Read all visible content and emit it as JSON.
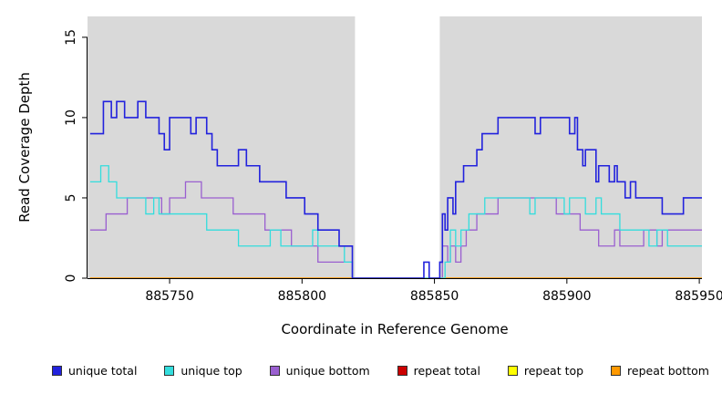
{
  "chart_data": {
    "type": "line",
    "subtype": "step",
    "title": "",
    "xlabel": "Coordinate in Reference Genome",
    "ylabel": "Read Coverage Depth",
    "xlim": [
      885719,
      885951
    ],
    "ylim": [
      0,
      16.3
    ],
    "xticks": [
      885750,
      885800,
      885850,
      885900,
      885950
    ],
    "yticks": [
      0,
      5,
      10,
      15
    ],
    "plot_bg": "#d9d9d9",
    "gap_region": [
      885820,
      885852
    ],
    "grid": false,
    "legend_position": "bottom",
    "draw_order": [
      "repeat total",
      "repeat top",
      "repeat bottom",
      "unique bottom",
      "unique top",
      "unique total"
    ],
    "series": [
      {
        "name": "unique total",
        "color": "#2222dd",
        "points": [
          [
            885720,
            9
          ],
          [
            885725,
            11
          ],
          [
            885728,
            10
          ],
          [
            885730,
            11
          ],
          [
            885733,
            10
          ],
          [
            885738,
            11
          ],
          [
            885741,
            10
          ],
          [
            885746,
            9
          ],
          [
            885748,
            8
          ],
          [
            885750,
            10
          ],
          [
            885758,
            9
          ],
          [
            885760,
            10
          ],
          [
            885764,
            9
          ],
          [
            885766,
            8
          ],
          [
            885768,
            7
          ],
          [
            885776,
            8
          ],
          [
            885779,
            7
          ],
          [
            885784,
            6
          ],
          [
            885790,
            6
          ],
          [
            885794,
            5
          ],
          [
            885801,
            4
          ],
          [
            885806,
            3
          ],
          [
            885812,
            3
          ],
          [
            885814,
            2
          ],
          [
            885819,
            0
          ],
          [
            885846,
            1
          ],
          [
            885848,
            0
          ],
          [
            885852,
            1
          ],
          [
            885853,
            4
          ],
          [
            885854,
            3
          ],
          [
            885855,
            5
          ],
          [
            885857,
            4
          ],
          [
            885858,
            6
          ],
          [
            885861,
            7
          ],
          [
            885864,
            7
          ],
          [
            885866,
            8
          ],
          [
            885868,
            9
          ],
          [
            885874,
            10
          ],
          [
            885886,
            10
          ],
          [
            885888,
            9
          ],
          [
            885890,
            10
          ],
          [
            885899,
            10
          ],
          [
            885901,
            9
          ],
          [
            885903,
            10
          ],
          [
            885904,
            8
          ],
          [
            885906,
            7
          ],
          [
            885907,
            8
          ],
          [
            885911,
            6
          ],
          [
            885912,
            7
          ],
          [
            885916,
            6
          ],
          [
            885918,
            7
          ],
          [
            885919,
            6
          ],
          [
            885922,
            5
          ],
          [
            885924,
            6
          ],
          [
            885926,
            5
          ],
          [
            885936,
            4
          ],
          [
            885942,
            4
          ],
          [
            885944,
            5
          ],
          [
            885950,
            5
          ]
        ]
      },
      {
        "name": "unique top",
        "color": "#33dddd",
        "points": [
          [
            885720,
            6
          ],
          [
            885724,
            7
          ],
          [
            885727,
            6
          ],
          [
            885730,
            5
          ],
          [
            885741,
            4
          ],
          [
            885744,
            5
          ],
          [
            885746,
            4
          ],
          [
            885753,
            4
          ],
          [
            885760,
            4
          ],
          [
            885764,
            3
          ],
          [
            885772,
            3
          ],
          [
            885776,
            2
          ],
          [
            885784,
            2
          ],
          [
            885788,
            3
          ],
          [
            885792,
            2
          ],
          [
            885804,
            3
          ],
          [
            885806,
            2
          ],
          [
            885816,
            1
          ],
          [
            885819,
            0
          ],
          [
            885852,
            0
          ],
          [
            885854,
            1
          ],
          [
            885856,
            3
          ],
          [
            885858,
            2
          ],
          [
            885860,
            3
          ],
          [
            885863,
            4
          ],
          [
            885869,
            5
          ],
          [
            885884,
            5
          ],
          [
            885886,
            4
          ],
          [
            885888,
            5
          ],
          [
            885897,
            5
          ],
          [
            885899,
            4
          ],
          [
            885901,
            5
          ],
          [
            885907,
            4
          ],
          [
            885911,
            5
          ],
          [
            885913,
            4
          ],
          [
            885920,
            3
          ],
          [
            885928,
            3
          ],
          [
            885931,
            2
          ],
          [
            885934,
            3
          ],
          [
            885938,
            2
          ],
          [
            885950,
            2
          ]
        ]
      },
      {
        "name": "unique bottom",
        "color": "#9a5fd0",
        "points": [
          [
            885720,
            3
          ],
          [
            885726,
            4
          ],
          [
            885734,
            5
          ],
          [
            885747,
            4
          ],
          [
            885750,
            5
          ],
          [
            885756,
            6
          ],
          [
            885762,
            5
          ],
          [
            885774,
            4
          ],
          [
            885786,
            3
          ],
          [
            885796,
            2
          ],
          [
            885806,
            1
          ],
          [
            885816,
            1
          ],
          [
            885819,
            0
          ],
          [
            885852,
            0
          ],
          [
            885853,
            2
          ],
          [
            885855,
            1
          ],
          [
            885856,
            2
          ],
          [
            885858,
            1
          ],
          [
            885860,
            2
          ],
          [
            885862,
            3
          ],
          [
            885866,
            4
          ],
          [
            885874,
            5
          ],
          [
            885893,
            5
          ],
          [
            885896,
            4
          ],
          [
            885905,
            3
          ],
          [
            885912,
            2
          ],
          [
            885918,
            3
          ],
          [
            885920,
            2
          ],
          [
            885929,
            3
          ],
          [
            885934,
            2
          ],
          [
            885936,
            3
          ],
          [
            885950,
            3
          ]
        ]
      },
      {
        "name": "repeat total",
        "color": "#cc0000",
        "points": [
          [
            885720,
            0
          ],
          [
            885950,
            0
          ]
        ]
      },
      {
        "name": "repeat top",
        "color": "#ffff00",
        "points": [
          [
            885720,
            0
          ],
          [
            885950,
            0
          ]
        ]
      },
      {
        "name": "repeat bottom",
        "color": "#ff9900",
        "points": [
          [
            885720,
            0
          ],
          [
            885950,
            0
          ]
        ]
      }
    ]
  },
  "legend": {
    "items": [
      {
        "label": "unique total",
        "color": "#2222dd"
      },
      {
        "label": "unique top",
        "color": "#33dddd"
      },
      {
        "label": "unique bottom",
        "color": "#9a5fd0"
      },
      {
        "label": "repeat total",
        "color": "#cc0000"
      },
      {
        "label": "repeat top",
        "color": "#ffff00"
      },
      {
        "label": "repeat bottom",
        "color": "#ff9900"
      }
    ]
  }
}
